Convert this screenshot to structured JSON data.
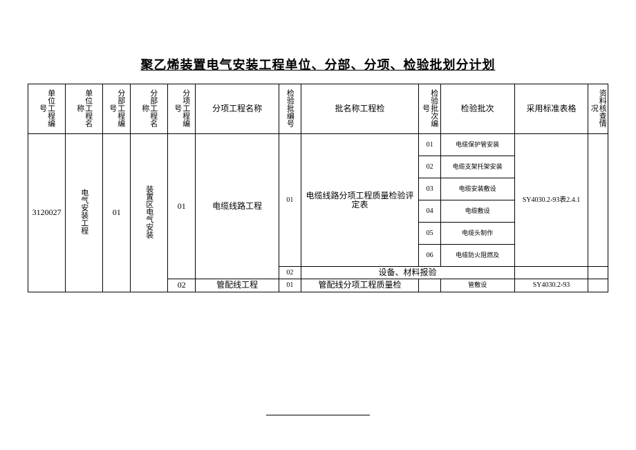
{
  "title": "聚乙烯装置电气安装工程单位、分部、分项、检验批划分计划",
  "headers": {
    "h1": "单位工程编号",
    "h2": "单位工程名称",
    "h3": "分部工程编号",
    "h4": "分部工程名称",
    "h5": "分项工程编号",
    "h6": "分项工程名称",
    "h7": "检验批编号",
    "h8": "批名称工程检",
    "h9": "检验批次编号",
    "h10": "检验批次",
    "h11": "采用标准表格",
    "h12": "资料核查情况"
  },
  "row": {
    "unit_code": "3120027",
    "unit_name": "电气安装工程",
    "section_code": "01",
    "section_name": "装置区电气安装",
    "sub_code_1": "01",
    "sub_name_1": "电缆线路工程",
    "batch_code_1": "01",
    "batch_name_1": "电缆线路分项工程质量检验评定表",
    "batch_code_2": "02",
    "batch_name_2": "设备、材料报验",
    "sub_code_2": "02",
    "sub_name_2": "管配线工程",
    "batch_code_3": "01",
    "batch_name_3": "管配线分项工程质量检",
    "standard_1": "SY4030.2-93表2.4.1",
    "standard_2": "SY4030.2-93",
    "checks": {
      "c1_num": "01",
      "c1_text": "电缆保护管安装",
      "c2_num": "02",
      "c2_text": "电缆支架托架安装",
      "c3_num": "03",
      "c3_text": "电缆安装敷设",
      "c4_num": "04",
      "c4_text": "电缆敷设",
      "c5_num": "05",
      "c5_text": "电缆头制作",
      "c6_num": "06",
      "c6_text": "电缆防火阻燃及",
      "c7_text": "管敷设"
    }
  }
}
